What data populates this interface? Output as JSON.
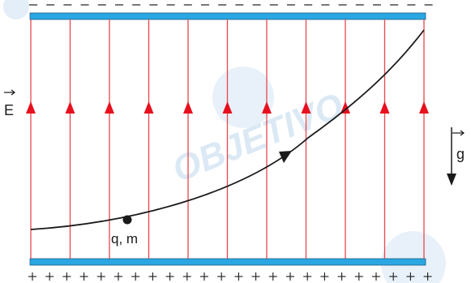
{
  "watermark": {
    "text": "OBJETIVO",
    "color": "#dbe9f5"
  },
  "plates": {
    "color": "#2aa7e2",
    "top_charge_symbol": "−",
    "bottom_charge_symbol": "+"
  },
  "field": {
    "label": "E",
    "line_color": "#e8474e",
    "arrow_color": "#e8101e",
    "line_count": 11,
    "direction": "up"
  },
  "gravity": {
    "label": "g",
    "direction": "down"
  },
  "particle": {
    "label": "q, m"
  },
  "trajectory": {
    "color": "#1a1a1a"
  },
  "icons": {
    "field_vector_arrow": "right-arrow-overline",
    "gravity_vector_arrow": "right-arrow-overline",
    "gravity_direction": "down-arrow",
    "trajectory_direction": "arrowhead"
  }
}
